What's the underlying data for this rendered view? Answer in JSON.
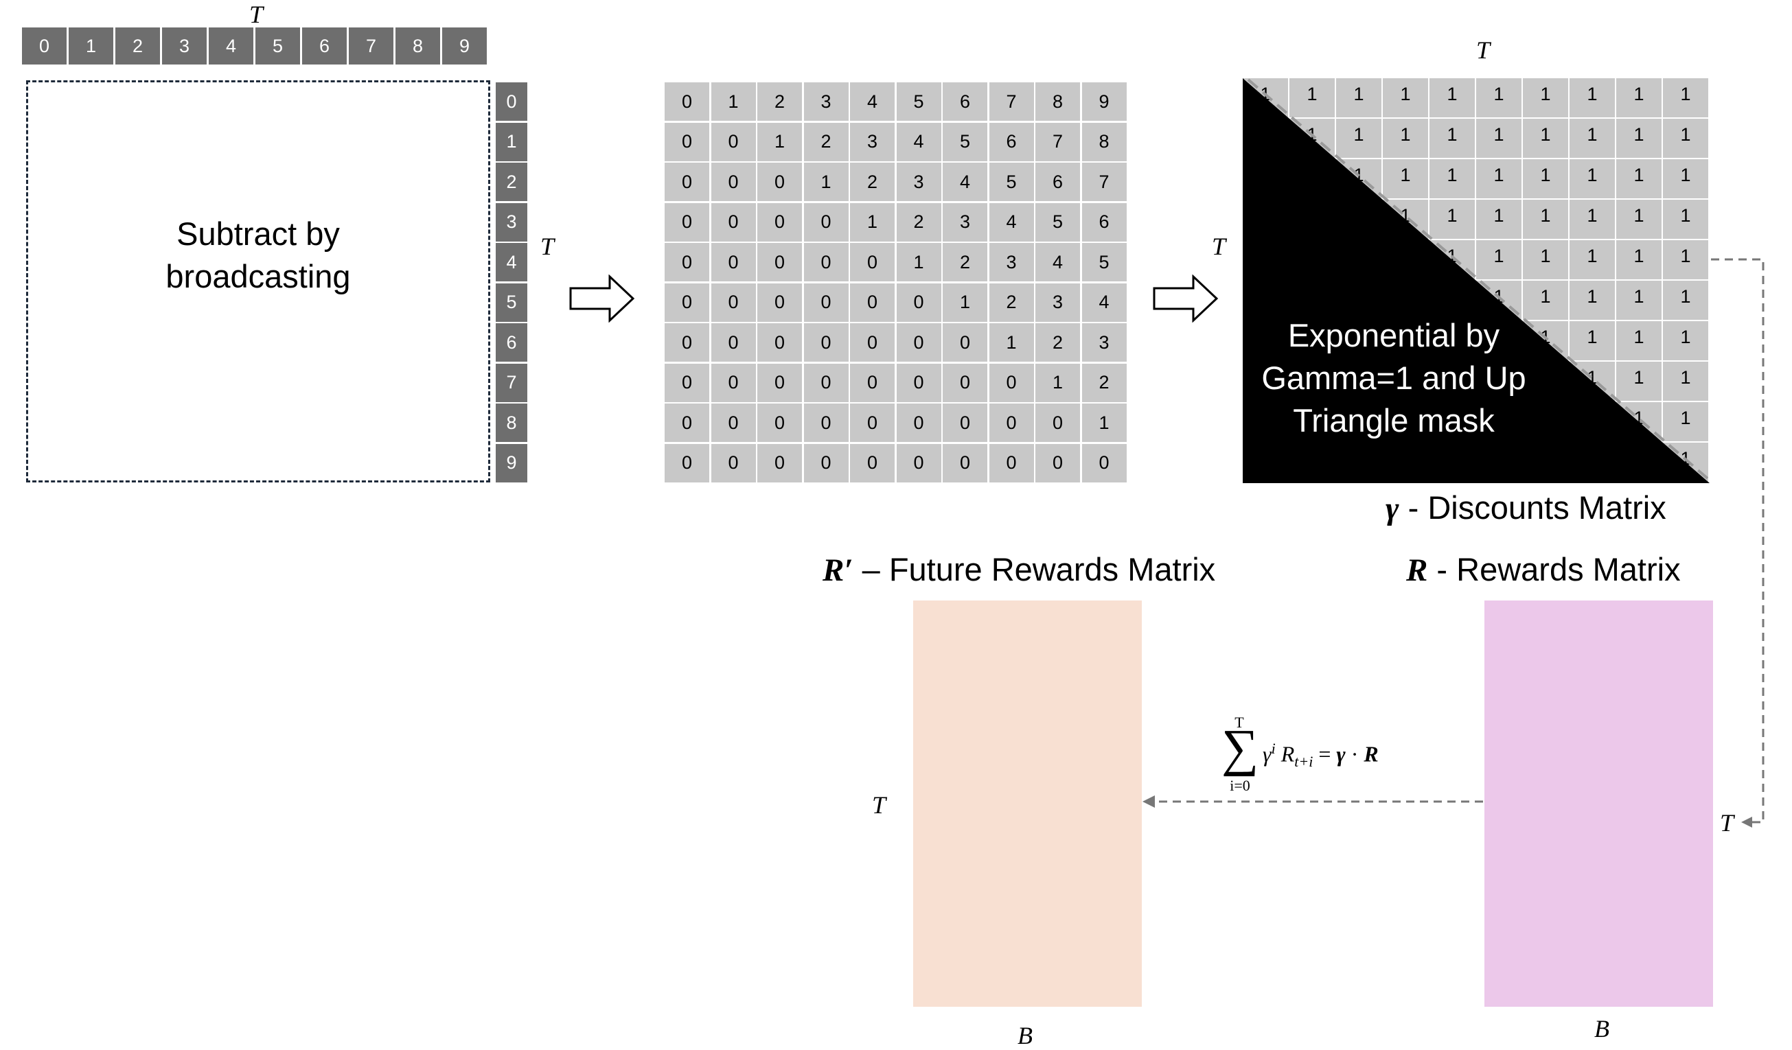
{
  "axis_labels": {
    "t_top_left": "T",
    "t_right_left": "T",
    "t_top_discount": "T",
    "t_left_discount": "T",
    "t_future": "T",
    "t_rewards": "T",
    "b_future": "B",
    "b_rewards": "B"
  },
  "index_row": [
    "0",
    "1",
    "2",
    "3",
    "4",
    "5",
    "6",
    "7",
    "8",
    "9"
  ],
  "index_col": [
    "0",
    "1",
    "2",
    "3",
    "4",
    "5",
    "6",
    "7",
    "8",
    "9"
  ],
  "broadcast_box": {
    "line1": "Subtract by",
    "line2": "broadcasting"
  },
  "difference_matrix": [
    [
      "0",
      "1",
      "2",
      "3",
      "4",
      "5",
      "6",
      "7",
      "8",
      "9"
    ],
    [
      "0",
      "0",
      "1",
      "2",
      "3",
      "4",
      "5",
      "6",
      "7",
      "8"
    ],
    [
      "0",
      "0",
      "0",
      "1",
      "2",
      "3",
      "4",
      "5",
      "6",
      "7"
    ],
    [
      "0",
      "0",
      "0",
      "0",
      "1",
      "2",
      "3",
      "4",
      "5",
      "6"
    ],
    [
      "0",
      "0",
      "0",
      "0",
      "0",
      "1",
      "2",
      "3",
      "4",
      "5"
    ],
    [
      "0",
      "0",
      "0",
      "0",
      "0",
      "0",
      "1",
      "2",
      "3",
      "4"
    ],
    [
      "0",
      "0",
      "0",
      "0",
      "0",
      "0",
      "0",
      "1",
      "2",
      "3"
    ],
    [
      "0",
      "0",
      "0",
      "0",
      "0",
      "0",
      "0",
      "0",
      "1",
      "2"
    ],
    [
      "0",
      "0",
      "0",
      "0",
      "0",
      "0",
      "0",
      "0",
      "0",
      "1"
    ],
    [
      "0",
      "0",
      "0",
      "0",
      "0",
      "0",
      "0",
      "0",
      "0",
      "0"
    ]
  ],
  "discount_cell_value": "1",
  "discount_mask": {
    "line1": "Exponential by",
    "line2": "Gamma=1 and Up",
    "line3": "Triangle mask"
  },
  "titles": {
    "discounts_symbol": "γ",
    "discounts_text": " - Discounts Matrix",
    "future_symbol": "R′",
    "future_text": " – Future Rewards Matrix",
    "rewards_symbol": "R",
    "rewards_text": " - Rewards Matrix"
  },
  "formula": {
    "upper": "T",
    "lower": "i=0",
    "gamma": "γ",
    "exponent": "i",
    "r": "R",
    "subscript": "t+i",
    "equals": "=",
    "rhs_gamma": "γ",
    "dot": "·",
    "rhs_r": "R"
  },
  "colors": {
    "index_cell": "#6e6e6e",
    "matrix_cell": "#c8c8c8",
    "future_rewards_fill": "#f8e0d2",
    "rewards_fill": "#ecc8ea",
    "arrow_line": "#777777"
  }
}
